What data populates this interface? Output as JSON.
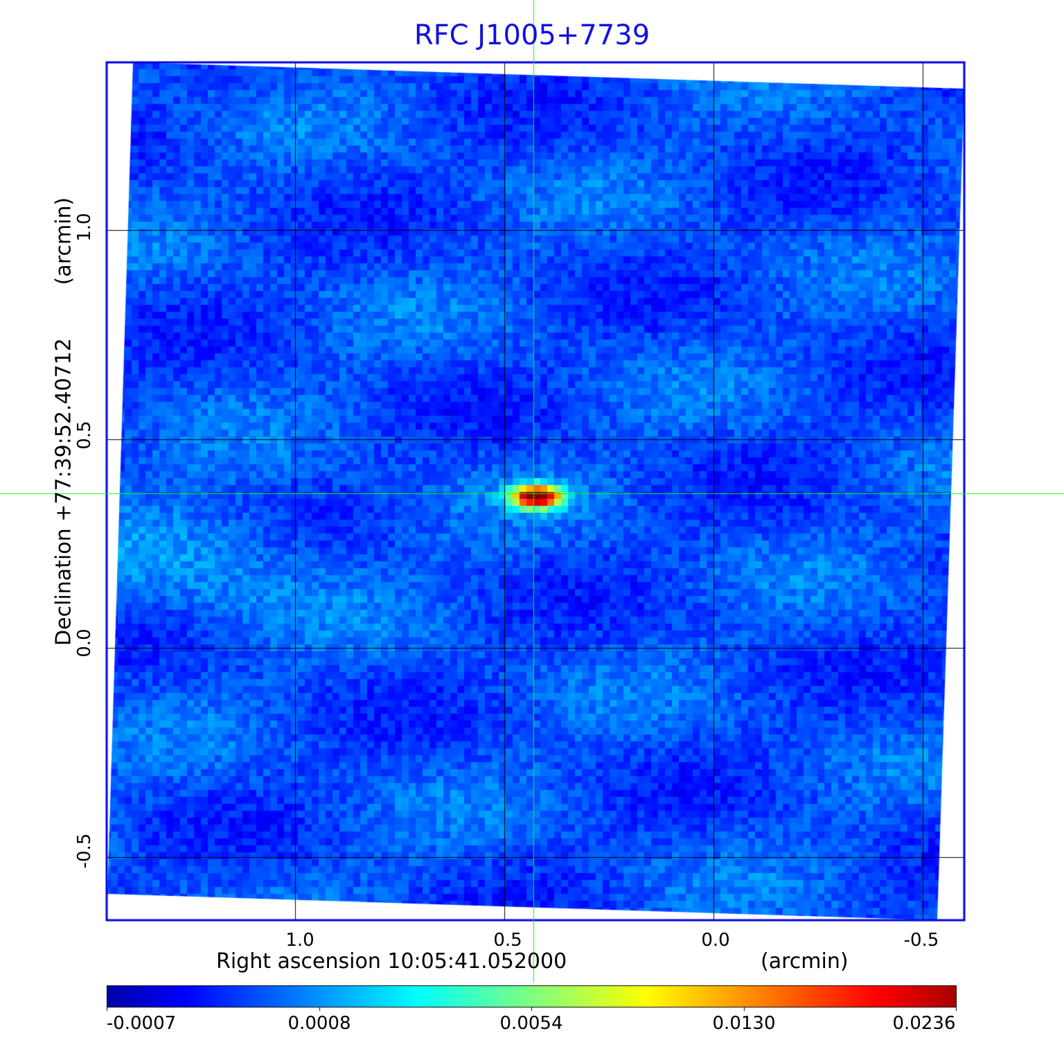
{
  "chart_data": {
    "type": "heatmap",
    "title": "RFC J1005+7739",
    "xlabel": "Right ascension  10:05:41.052000",
    "xunit": "(arcmin)",
    "ylabel": "Declination  +77:39:52.40712",
    "yunit": "(arcmin)",
    "x_ticks": [
      "1.0",
      "0.5",
      "0.0",
      "-0.5"
    ],
    "y_ticks": [
      "1.0",
      "0.5",
      "0.0",
      "-0.5"
    ],
    "xlim": [
      1.45,
      -0.6
    ],
    "ylim": [
      -0.65,
      1.4
    ],
    "grid": true,
    "colormap": "jet",
    "colorbar_ticks": [
      "-0.0007",
      "0.0008",
      "0.0054",
      "0.0130",
      "0.0236"
    ],
    "source_peak": {
      "x": 0.43,
      "y": 0.37,
      "value": 0.0236
    },
    "crosshair": {
      "x": 0.43,
      "y": 0.37
    },
    "colors": {
      "frame": "#0000e0",
      "title": "#1010e0",
      "crosshair": "#00ff00",
      "grid": "#000000"
    }
  }
}
